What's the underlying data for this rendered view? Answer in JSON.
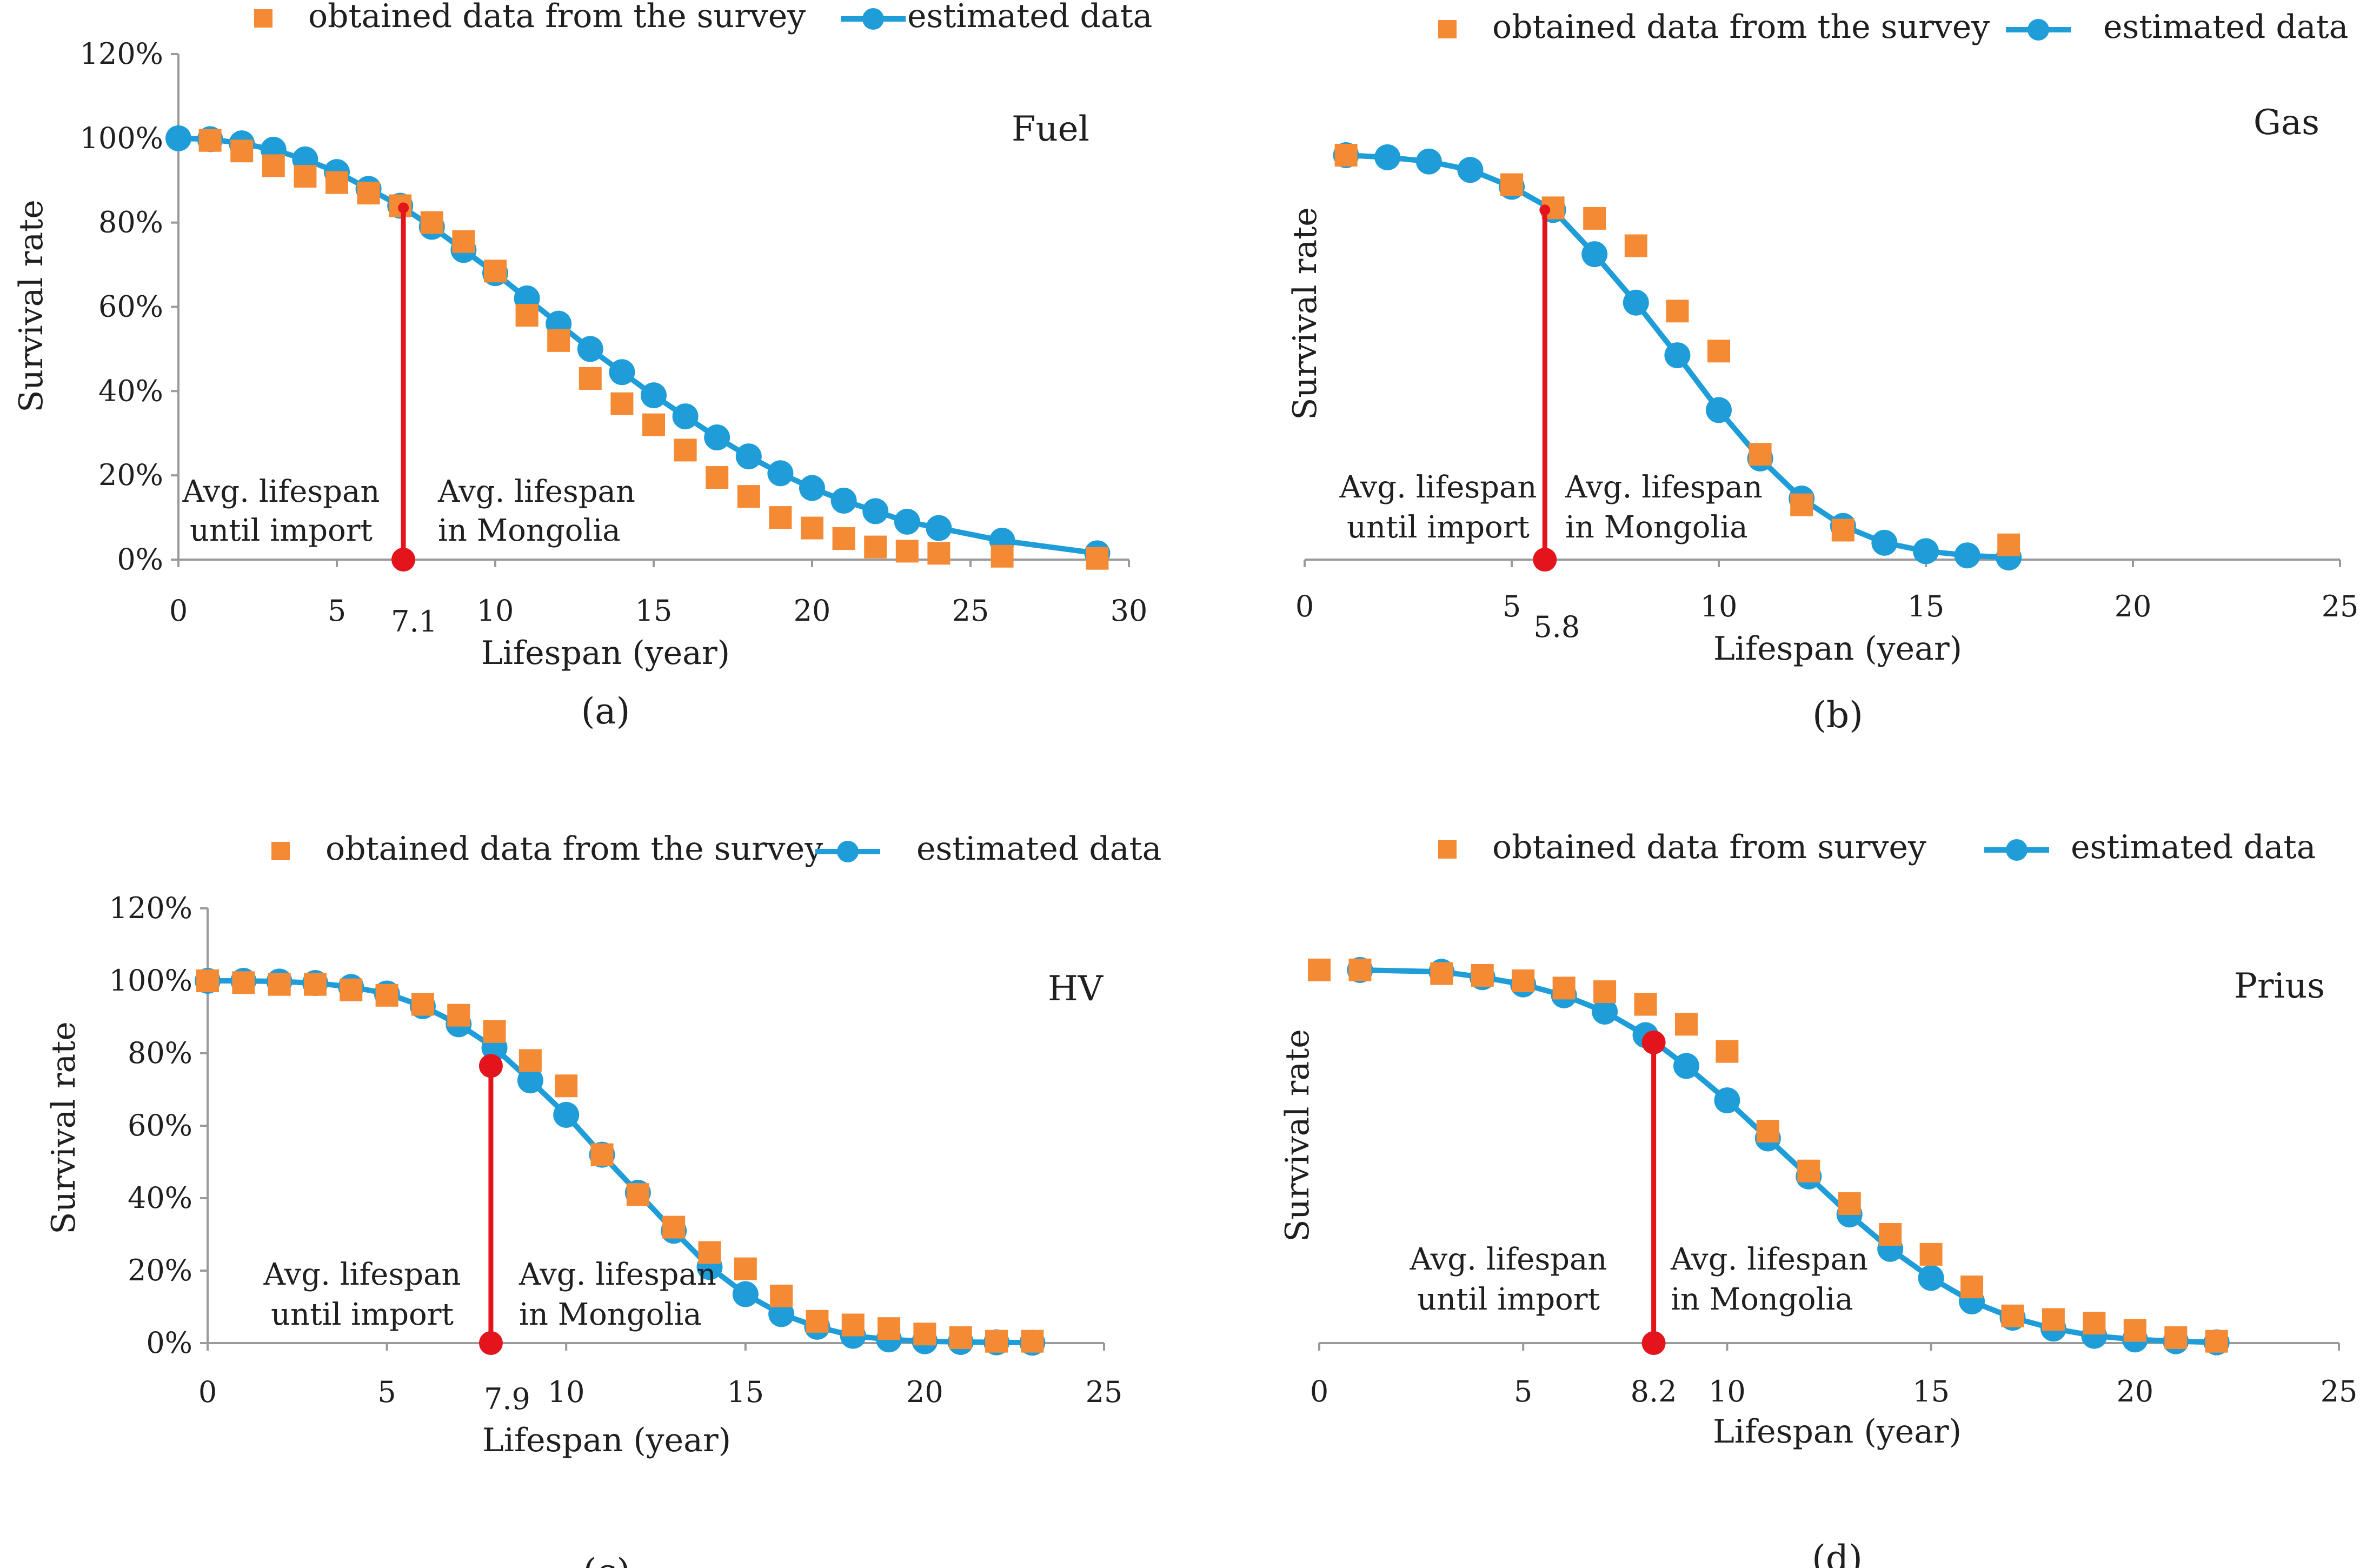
{
  "chart_data": [
    {
      "type": "scatter",
      "panel_label": "(a)",
      "title": "Fuel",
      "xlabel": "Lifespan (year)",
      "ylabel": "Survival rate",
      "xlim": [
        0,
        30
      ],
      "ylim": [
        0,
        120
      ],
      "xticks": [
        "0",
        "5",
        "10",
        "15",
        "20",
        "25",
        "30"
      ],
      "yticks": [
        "0%",
        "20%",
        "40%",
        "60%",
        "80%",
        "100%",
        "120%"
      ],
      "legend": {
        "survey": "obtained data from the survey",
        "estimated": "estimated data"
      },
      "survey": {
        "x": [
          1,
          2,
          3,
          4,
          5,
          6,
          7,
          8,
          9,
          10,
          11,
          12,
          13,
          14,
          15,
          16,
          17,
          18,
          19,
          20,
          21,
          22,
          23,
          24,
          26,
          29
        ],
        "y": [
          99.5,
          97,
          93.5,
          91,
          89.5,
          87,
          84,
          80,
          75.5,
          68.5,
          58,
          52,
          43,
          37,
          32,
          26,
          19.5,
          15,
          10,
          7.5,
          5,
          3,
          2,
          1.5,
          0.8,
          0.3
        ]
      },
      "estimated": {
        "x": [
          0,
          1,
          2,
          3,
          4,
          5,
          6,
          7,
          8,
          9,
          10,
          11,
          12,
          13,
          14,
          15,
          16,
          17,
          18,
          19,
          20,
          21,
          22,
          23,
          24,
          26,
          29
        ],
        "y": [
          100,
          99.8,
          98.8,
          97.3,
          95,
          92,
          88,
          84,
          79,
          73.5,
          68,
          62,
          56,
          50,
          44.5,
          39,
          34,
          29,
          24.5,
          20.5,
          17,
          14,
          11.5,
          9,
          7.5,
          4.5,
          1.5
        ]
      },
      "marker": {
        "x": 7.1,
        "y": 83.5,
        "label": "7.1"
      },
      "anno_left": [
        "Avg. lifespan",
        "until import"
      ],
      "anno_right": [
        "Avg. lifespan",
        "in Mongolia"
      ]
    },
    {
      "type": "scatter",
      "panel_label": "(b)",
      "title": "Gas",
      "xlabel": "Lifespan (year)",
      "ylabel": "Survival rate",
      "xlim": [
        0,
        25
      ],
      "ylim": [
        0,
        120
      ],
      "xticks": [
        "0",
        "5",
        "10",
        "15",
        "20",
        "25"
      ],
      "yticks": [],
      "legend": {
        "survey": "obtained data from the survey",
        "estimated": "estimated data"
      },
      "survey": {
        "x": [
          1,
          5,
          6,
          7,
          8,
          9,
          10,
          11,
          12,
          13,
          17
        ],
        "y": [
          96,
          89,
          83.5,
          81,
          74.5,
          59,
          49.5,
          25,
          13,
          7,
          3.5
        ]
      },
      "estimated": {
        "x": [
          1,
          2,
          3,
          4,
          5,
          6,
          7,
          8,
          9,
          10,
          11,
          12,
          13,
          14,
          15,
          16,
          17
        ],
        "y": [
          96,
          95.5,
          94.5,
          92.5,
          88.5,
          83,
          72.5,
          61,
          48.5,
          35.5,
          24,
          14.5,
          8,
          4,
          2,
          1,
          0.5
        ]
      },
      "marker": {
        "x": 5.8,
        "y": 83,
        "label": "5.8"
      },
      "anno_left": [
        "Avg. lifespan",
        "until import"
      ],
      "anno_right": [
        "Avg. lifespan",
        "in Mongolia"
      ]
    },
    {
      "type": "scatter",
      "panel_label": "(c)",
      "title": "HV",
      "xlabel": "Lifespan (year)",
      "ylabel": "Survival rate",
      "xlim": [
        0,
        25
      ],
      "ylim": [
        0,
        120
      ],
      "xticks": [
        "0",
        "5",
        "10",
        "15",
        "20",
        "25"
      ],
      "yticks": [
        "0%",
        "20%",
        "40%",
        "60%",
        "80%",
        "100%",
        "120%"
      ],
      "legend": {
        "survey": "obtained data from the survey",
        "estimated": "estimated data"
      },
      "survey": {
        "x": [
          0,
          1,
          2,
          3,
          4,
          5,
          6,
          7,
          8,
          9,
          10,
          11,
          12,
          13,
          14,
          15,
          16,
          17,
          18,
          19,
          20,
          21,
          22,
          23
        ],
        "y": [
          100,
          99.5,
          99,
          99,
          97.5,
          96,
          93.5,
          90.5,
          86,
          78,
          71,
          52,
          41,
          32,
          25,
          20.5,
          13,
          6,
          5,
          4,
          2.5,
          1.5,
          0.5,
          0.5
        ]
      },
      "estimated": {
        "x": [
          0,
          1,
          2,
          3,
          4,
          5,
          6,
          7,
          8,
          9,
          10,
          11,
          12,
          13,
          14,
          15,
          16,
          17,
          18,
          19,
          20,
          21,
          22,
          23
        ],
        "y": [
          100,
          100,
          99.8,
          99.4,
          98.3,
          96.5,
          93,
          88,
          81.5,
          72.5,
          63,
          52,
          41.5,
          31,
          21,
          13.5,
          8,
          4.5,
          2,
          1,
          0.5,
          0.3,
          0.2,
          0.1
        ]
      },
      "marker": {
        "x": 7.9,
        "y": 76.5,
        "label": "7.9"
      },
      "anno_left": [
        "Avg. lifespan",
        "until import"
      ],
      "anno_right": [
        "Avg. lifespan",
        "in Mongolia"
      ]
    },
    {
      "type": "scatter",
      "panel_label": "(d)",
      "title": "Prius",
      "xlabel": "Lifespan (year)",
      "ylabel": "Survival rate",
      "xlim": [
        0,
        25
      ],
      "ylim": [
        0,
        120
      ],
      "xticks": [
        "0",
        "5",
        "8.2",
        "10",
        "15",
        "20",
        "25"
      ],
      "yticks": [],
      "legend": {
        "survey": "obtained data from survey",
        "estimated": "estimated data"
      },
      "survey": {
        "x": [
          0,
          1,
          3,
          4,
          5,
          6,
          7,
          8,
          9,
          10,
          11,
          12,
          13,
          14,
          15,
          16,
          17,
          18,
          19,
          20,
          21,
          22
        ],
        "y": [
          103,
          103,
          102,
          101.5,
          100,
          98,
          97,
          93.5,
          88,
          80.5,
          58.5,
          47.5,
          38.5,
          30,
          24.5,
          15.5,
          7.5,
          6.5,
          5.5,
          3.5,
          1.5,
          0.5
        ]
      },
      "estimated": {
        "x": [
          1,
          3,
          4,
          5,
          6,
          7,
          8,
          9,
          10,
          11,
          12,
          13,
          14,
          15,
          16,
          17,
          18,
          19,
          20,
          21,
          22
        ],
        "y": [
          103,
          102.5,
          101,
          99,
          96,
          91.5,
          85,
          76.5,
          67,
          56.5,
          46,
          35.5,
          26,
          18,
          11.5,
          7,
          4,
          2,
          1,
          0.5,
          0.2
        ]
      },
      "marker": {
        "x": 8.2,
        "y": 83,
        "label": ""
      },
      "anno_left": [
        "Avg. lifespan",
        "until import"
      ],
      "anno_right": [
        "Avg. lifespan",
        "in Mongolia"
      ]
    }
  ],
  "colors": {
    "survey": "#F58A34",
    "estimated": "#1F9DD9",
    "marker": "#E3141C"
  }
}
